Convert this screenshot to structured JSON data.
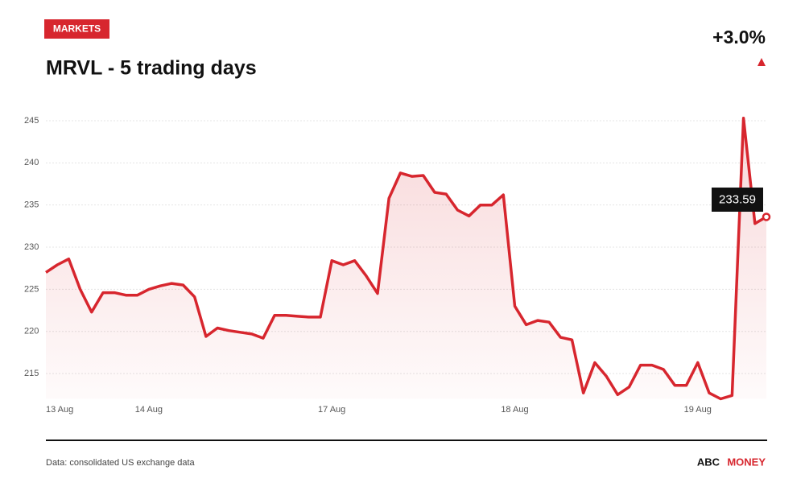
{
  "section": "MARKETS",
  "chart_data": {
    "type": "line",
    "title": "MRVL - 5 trading days",
    "change": "+3.0%",
    "source": "Data: consolidated US exchange data",
    "brand": [
      "ABC",
      "MONEY"
    ],
    "categories": [
      "13 Aug",
      null,
      null,
      null,
      null,
      null,
      null,
      null,
      null,
      "14 Aug",
      null,
      null,
      null,
      null,
      null,
      null,
      null,
      null,
      null,
      null,
      null,
      null,
      null,
      null,
      null,
      "17 Aug",
      null,
      null,
      null,
      null,
      null,
      null,
      null,
      null,
      null,
      null,
      null,
      null,
      null,
      null,
      null,
      "18 Aug",
      null,
      null,
      null,
      null,
      null,
      null,
      null,
      null,
      null,
      null,
      null,
      null,
      null,
      null,
      null,
      "19 Aug",
      null,
      null,
      null,
      null,
      null,
      null
    ],
    "series": [
      {
        "name": "MRVL",
        "color": "#d7262e",
        "values": [
          227.0,
          227.9,
          228.6,
          225.0,
          222.3,
          224.6,
          224.6,
          224.3,
          224.3,
          225.0,
          225.4,
          225.7,
          225.5,
          224.1,
          219.4,
          220.4,
          220.1,
          219.9,
          219.7,
          219.2,
          221.9,
          221.9,
          221.8,
          221.7,
          221.7,
          228.4,
          227.9,
          228.4,
          226.6,
          224.5,
          235.8,
          238.8,
          238.4,
          238.5,
          236.5,
          236.3,
          234.4,
          233.7,
          235.0,
          235.0,
          236.2,
          223.0,
          220.8,
          221.3,
          221.1,
          219.3,
          219.0,
          212.7,
          216.3,
          214.7,
          212.5,
          213.4,
          216.0,
          216.0,
          215.5,
          213.6,
          213.6,
          216.3,
          212.7,
          212.0,
          212.4,
          245.3,
          232.8,
          233.59
        ],
        "value_labels": [
          null,
          null,
          null,
          null,
          null,
          null,
          null,
          null,
          null,
          null,
          null,
          null,
          null,
          null,
          null,
          null,
          null,
          null,
          null,
          null,
          null,
          null,
          null,
          null,
          null,
          null,
          null,
          null,
          null,
          null,
          null,
          null,
          null,
          null,
          null,
          null,
          null,
          null,
          null,
          null,
          null,
          null,
          null,
          null,
          null,
          null,
          null,
          null,
          null,
          null,
          null,
          null,
          null,
          null,
          null,
          null,
          null,
          null,
          null,
          null,
          null,
          null,
          null,
          "233.59"
        ]
      }
    ],
    "ylim": [
      212,
      246
    ],
    "yticks": [
      215,
      220,
      225,
      230,
      235,
      240,
      245
    ],
    "grid": true
  }
}
